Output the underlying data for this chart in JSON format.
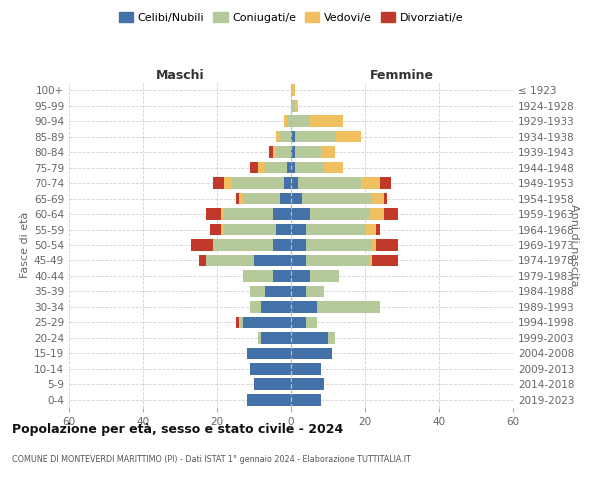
{
  "age_groups": [
    "0-4",
    "5-9",
    "10-14",
    "15-19",
    "20-24",
    "25-29",
    "30-34",
    "35-39",
    "40-44",
    "45-49",
    "50-54",
    "55-59",
    "60-64",
    "65-69",
    "70-74",
    "75-79",
    "80-84",
    "85-89",
    "90-94",
    "95-99",
    "100+"
  ],
  "birth_years": [
    "2019-2023",
    "2014-2018",
    "2009-2013",
    "2004-2008",
    "1999-2003",
    "1994-1998",
    "1989-1993",
    "1984-1988",
    "1979-1983",
    "1974-1978",
    "1969-1973",
    "1964-1968",
    "1959-1963",
    "1954-1958",
    "1949-1953",
    "1944-1948",
    "1939-1943",
    "1934-1938",
    "1929-1933",
    "1924-1928",
    "≤ 1923"
  ],
  "colors": {
    "celibi": "#4472a8",
    "coniugati": "#b5c99a",
    "vedovi": "#f0c060",
    "divorziati": "#c0392b"
  },
  "males": {
    "celibi": [
      12,
      10,
      11,
      12,
      8,
      13,
      8,
      7,
      5,
      10,
      5,
      4,
      5,
      3,
      2,
      1,
      0,
      0,
      0,
      0,
      0
    ],
    "coniugati": [
      0,
      0,
      0,
      0,
      1,
      1,
      3,
      4,
      8,
      13,
      16,
      14,
      13,
      10,
      14,
      6,
      4,
      3,
      1,
      0,
      0
    ],
    "vedovi": [
      0,
      0,
      0,
      0,
      0,
      0,
      0,
      0,
      0,
      0,
      0,
      1,
      1,
      1,
      2,
      2,
      1,
      1,
      1,
      0,
      0
    ],
    "divorziati": [
      0,
      0,
      0,
      0,
      0,
      1,
      0,
      0,
      0,
      2,
      6,
      3,
      4,
      1,
      3,
      2,
      1,
      0,
      0,
      0,
      0
    ]
  },
  "females": {
    "celibi": [
      8,
      9,
      8,
      11,
      10,
      4,
      7,
      4,
      5,
      4,
      4,
      4,
      5,
      3,
      2,
      1,
      1,
      1,
      0,
      0,
      0
    ],
    "coniugati": [
      0,
      0,
      0,
      0,
      2,
      3,
      17,
      5,
      8,
      17,
      18,
      16,
      16,
      19,
      17,
      8,
      7,
      11,
      5,
      1,
      0
    ],
    "vedovi": [
      0,
      0,
      0,
      0,
      0,
      0,
      0,
      0,
      0,
      1,
      1,
      3,
      4,
      3,
      5,
      5,
      4,
      7,
      9,
      1,
      1
    ],
    "divorziati": [
      0,
      0,
      0,
      0,
      0,
      0,
      0,
      0,
      0,
      7,
      6,
      1,
      4,
      1,
      3,
      0,
      0,
      0,
      0,
      0,
      0
    ]
  },
  "xlim": 60,
  "title": "Popolazione per età, sesso e stato civile - 2024",
  "subtitle": "COMUNE DI MONTEVERDI MARITTIMO (PI) - Dati ISTAT 1° gennaio 2024 - Elaborazione TUTTITALIA.IT",
  "ylabel_left": "Fasce di età",
  "ylabel_right": "Anni di nascita",
  "label_maschi": "Maschi",
  "label_femmine": "Femmine",
  "legend_labels": [
    "Celibi/Nubili",
    "Coniugati/e",
    "Vedovi/e",
    "Divorziati/e"
  ],
  "background_color": "#ffffff",
  "bar_height": 0.75,
  "grid_color": "#cccccc"
}
